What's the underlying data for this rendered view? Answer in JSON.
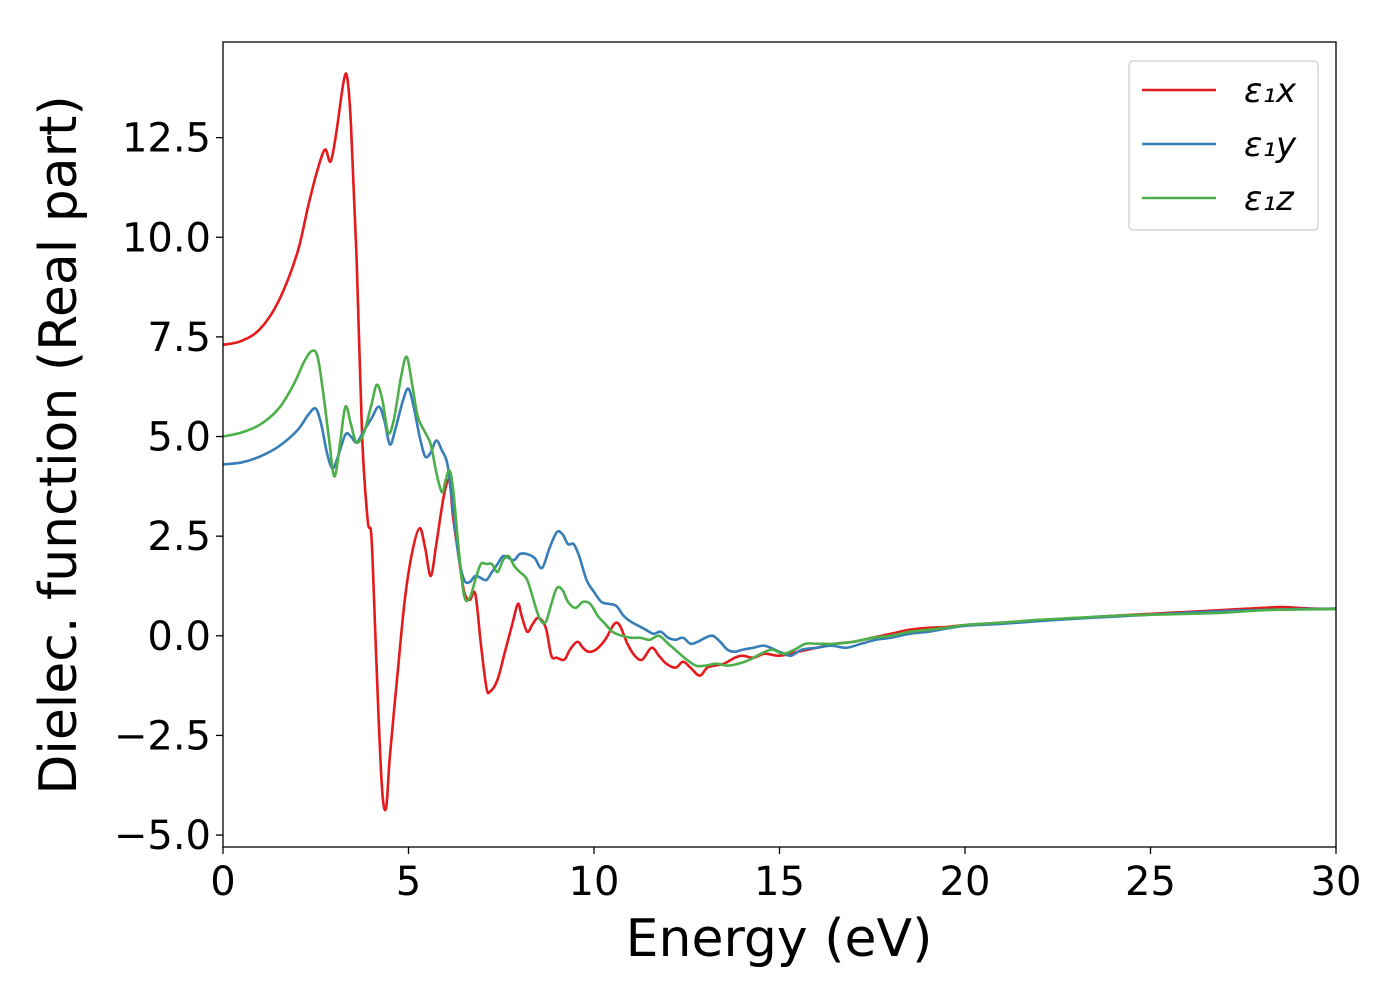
{
  "chart_data": {
    "type": "line",
    "xlabel": "Energy (eV)",
    "ylabel": "Dielec. function (Real part)",
    "xlim": [
      0,
      30
    ],
    "ylim": [
      -5.3,
      14.9
    ],
    "x_ticks": [
      0,
      5,
      10,
      15,
      20,
      25,
      30
    ],
    "x_tick_labels": [
      "0",
      "5",
      "10",
      "15",
      "20",
      "25",
      "30"
    ],
    "y_ticks": [
      -5.0,
      -2.5,
      0.0,
      2.5,
      5.0,
      7.5,
      10.0,
      12.5
    ],
    "y_tick_labels": [
      "−5.0",
      "−2.5",
      "0.0",
      "2.5",
      "5.0",
      "7.5",
      "10.0",
      "12.5"
    ],
    "grid": false,
    "legend_position": "top-right",
    "series": [
      {
        "name": "ε₁x",
        "color": "#e41a1c",
        "points": [
          [
            0,
            7.3
          ],
          [
            0.5,
            7.4
          ],
          [
            1.0,
            7.7
          ],
          [
            1.5,
            8.4
          ],
          [
            2.0,
            9.6
          ],
          [
            2.3,
            10.8
          ],
          [
            2.55,
            11.7
          ],
          [
            2.75,
            12.2
          ],
          [
            2.9,
            11.9
          ],
          [
            3.05,
            12.6
          ],
          [
            3.25,
            13.9
          ],
          [
            3.35,
            14.0
          ],
          [
            3.45,
            12.8
          ],
          [
            3.6,
            9.5
          ],
          [
            3.75,
            5.0
          ],
          [
            3.9,
            2.9
          ],
          [
            4.0,
            2.5
          ],
          [
            4.1,
            0.2
          ],
          [
            4.2,
            -2.2
          ],
          [
            4.3,
            -4.0
          ],
          [
            4.4,
            -4.3
          ],
          [
            4.5,
            -3.0
          ],
          [
            4.7,
            -1.0
          ],
          [
            4.9,
            0.9
          ],
          [
            5.1,
            2.1
          ],
          [
            5.3,
            2.7
          ],
          [
            5.45,
            2.2
          ],
          [
            5.6,
            1.5
          ],
          [
            5.75,
            2.3
          ],
          [
            5.95,
            3.5
          ],
          [
            6.1,
            3.9
          ],
          [
            6.2,
            3.0
          ],
          [
            6.35,
            2.0
          ],
          [
            6.5,
            1.1
          ],
          [
            6.65,
            0.9
          ],
          [
            6.8,
            1.05
          ],
          [
            6.95,
            -0.2
          ],
          [
            7.1,
            -1.3
          ],
          [
            7.2,
            -1.4
          ],
          [
            7.4,
            -1.1
          ],
          [
            7.6,
            -0.4
          ],
          [
            7.8,
            0.3
          ],
          [
            7.95,
            0.8
          ],
          [
            8.05,
            0.5
          ],
          [
            8.2,
            0.1
          ],
          [
            8.35,
            0.3
          ],
          [
            8.5,
            0.45
          ],
          [
            8.7,
            0.2
          ],
          [
            8.85,
            -0.5
          ],
          [
            9.0,
            -0.55
          ],
          [
            9.2,
            -0.6
          ],
          [
            9.35,
            -0.35
          ],
          [
            9.55,
            -0.15
          ],
          [
            9.7,
            -0.3
          ],
          [
            9.85,
            -0.4
          ],
          [
            10.05,
            -0.35
          ],
          [
            10.3,
            -0.1
          ],
          [
            10.55,
            0.3
          ],
          [
            10.7,
            0.25
          ],
          [
            10.9,
            -0.2
          ],
          [
            11.1,
            -0.5
          ],
          [
            11.3,
            -0.6
          ],
          [
            11.55,
            -0.3
          ],
          [
            11.75,
            -0.5
          ],
          [
            11.95,
            -0.7
          ],
          [
            12.2,
            -0.8
          ],
          [
            12.4,
            -0.65
          ],
          [
            12.6,
            -0.8
          ],
          [
            12.85,
            -1.0
          ],
          [
            13.05,
            -0.8
          ],
          [
            13.25,
            -0.75
          ],
          [
            13.5,
            -0.7
          ],
          [
            13.8,
            -0.55
          ],
          [
            14.0,
            -0.5
          ],
          [
            14.3,
            -0.55
          ],
          [
            14.6,
            -0.45
          ],
          [
            15.0,
            -0.5
          ],
          [
            15.5,
            -0.4
          ],
          [
            16.0,
            -0.3
          ],
          [
            16.5,
            -0.2
          ],
          [
            17.0,
            -0.15
          ],
          [
            17.5,
            -0.05
          ],
          [
            18.0,
            0.05
          ],
          [
            18.5,
            0.15
          ],
          [
            19.0,
            0.2
          ],
          [
            19.5,
            0.22
          ],
          [
            20.0,
            0.27
          ],
          [
            21.0,
            0.33
          ],
          [
            22.0,
            0.38
          ],
          [
            23.0,
            0.44
          ],
          [
            24.0,
            0.5
          ],
          [
            25.0,
            0.55
          ],
          [
            26.0,
            0.6
          ],
          [
            27.0,
            0.65
          ],
          [
            28.0,
            0.7
          ],
          [
            28.5,
            0.72
          ],
          [
            29.0,
            0.7
          ],
          [
            29.5,
            0.68
          ],
          [
            30.0,
            0.68
          ]
        ]
      },
      {
        "name": "ε₁y",
        "color": "#377eb8",
        "points": [
          [
            0,
            4.3
          ],
          [
            0.5,
            4.35
          ],
          [
            1.0,
            4.5
          ],
          [
            1.5,
            4.75
          ],
          [
            2.0,
            5.15
          ],
          [
            2.3,
            5.55
          ],
          [
            2.5,
            5.7
          ],
          [
            2.65,
            5.3
          ],
          [
            2.8,
            4.6
          ],
          [
            2.95,
            4.2
          ],
          [
            3.1,
            4.5
          ],
          [
            3.3,
            5.05
          ],
          [
            3.45,
            5.0
          ],
          [
            3.6,
            4.85
          ],
          [
            3.8,
            5.15
          ],
          [
            4.0,
            5.45
          ],
          [
            4.2,
            5.75
          ],
          [
            4.35,
            5.4
          ],
          [
            4.5,
            4.8
          ],
          [
            4.65,
            5.2
          ],
          [
            4.85,
            5.9
          ],
          [
            5.0,
            6.2
          ],
          [
            5.15,
            5.7
          ],
          [
            5.3,
            5.0
          ],
          [
            5.45,
            4.5
          ],
          [
            5.6,
            4.6
          ],
          [
            5.75,
            4.9
          ],
          [
            5.9,
            4.65
          ],
          [
            6.05,
            4.3
          ],
          [
            6.2,
            3.2
          ],
          [
            6.35,
            2.0
          ],
          [
            6.5,
            1.4
          ],
          [
            6.65,
            1.35
          ],
          [
            6.8,
            1.5
          ],
          [
            6.95,
            1.45
          ],
          [
            7.1,
            1.4
          ],
          [
            7.25,
            1.6
          ],
          [
            7.4,
            1.8
          ],
          [
            7.55,
            2.0
          ],
          [
            7.7,
            1.95
          ],
          [
            7.85,
            1.9
          ],
          [
            8.0,
            2.05
          ],
          [
            8.2,
            2.05
          ],
          [
            8.4,
            1.95
          ],
          [
            8.6,
            1.7
          ],
          [
            8.8,
            2.2
          ],
          [
            9.0,
            2.6
          ],
          [
            9.15,
            2.55
          ],
          [
            9.3,
            2.3
          ],
          [
            9.45,
            2.3
          ],
          [
            9.6,
            2.0
          ],
          [
            9.8,
            1.4
          ],
          [
            10.0,
            1.1
          ],
          [
            10.2,
            0.85
          ],
          [
            10.4,
            0.8
          ],
          [
            10.6,
            0.75
          ],
          [
            10.8,
            0.5
          ],
          [
            11.0,
            0.35
          ],
          [
            11.2,
            0.25
          ],
          [
            11.4,
            0.15
          ],
          [
            11.6,
            0.05
          ],
          [
            11.8,
            0.1
          ],
          [
            12.0,
            -0.05
          ],
          [
            12.2,
            -0.1
          ],
          [
            12.4,
            -0.05
          ],
          [
            12.6,
            -0.2
          ],
          [
            12.8,
            -0.15
          ],
          [
            13.0,
            -0.05
          ],
          [
            13.2,
            0.0
          ],
          [
            13.4,
            -0.15
          ],
          [
            13.6,
            -0.35
          ],
          [
            13.8,
            -0.4
          ],
          [
            14.0,
            -0.35
          ],
          [
            14.3,
            -0.3
          ],
          [
            14.6,
            -0.25
          ],
          [
            15.0,
            -0.4
          ],
          [
            15.3,
            -0.5
          ],
          [
            15.6,
            -0.35
          ],
          [
            16.0,
            -0.3
          ],
          [
            16.4,
            -0.25
          ],
          [
            16.8,
            -0.3
          ],
          [
            17.2,
            -0.2
          ],
          [
            17.6,
            -0.1
          ],
          [
            18.0,
            -0.05
          ],
          [
            18.5,
            0.05
          ],
          [
            19.0,
            0.1
          ],
          [
            19.5,
            0.18
          ],
          [
            20.0,
            0.25
          ],
          [
            21.0,
            0.3
          ],
          [
            22.0,
            0.37
          ],
          [
            23.0,
            0.43
          ],
          [
            24.0,
            0.48
          ],
          [
            25.0,
            0.53
          ],
          [
            26.0,
            0.58
          ],
          [
            27.0,
            0.62
          ],
          [
            28.0,
            0.65
          ],
          [
            29.0,
            0.67
          ],
          [
            30.0,
            0.68
          ]
        ]
      },
      {
        "name": "ε₁z",
        "color": "#4daf4a",
        "points": [
          [
            0,
            5.0
          ],
          [
            0.5,
            5.1
          ],
          [
            1.0,
            5.3
          ],
          [
            1.5,
            5.7
          ],
          [
            1.9,
            6.3
          ],
          [
            2.2,
            6.9
          ],
          [
            2.4,
            7.15
          ],
          [
            2.55,
            7.0
          ],
          [
            2.7,
            6.1
          ],
          [
            2.85,
            5.0
          ],
          [
            3.0,
            4.0
          ],
          [
            3.15,
            4.8
          ],
          [
            3.3,
            5.75
          ],
          [
            3.45,
            5.3
          ],
          [
            3.6,
            4.85
          ],
          [
            3.8,
            5.1
          ],
          [
            4.0,
            5.8
          ],
          [
            4.15,
            6.3
          ],
          [
            4.3,
            5.9
          ],
          [
            4.45,
            5.1
          ],
          [
            4.6,
            5.4
          ],
          [
            4.8,
            6.5
          ],
          [
            4.95,
            7.0
          ],
          [
            5.1,
            6.3
          ],
          [
            5.25,
            5.5
          ],
          [
            5.45,
            5.1
          ],
          [
            5.6,
            4.8
          ],
          [
            5.75,
            4.1
          ],
          [
            5.9,
            3.6
          ],
          [
            6.0,
            3.9
          ],
          [
            6.1,
            4.15
          ],
          [
            6.2,
            3.7
          ],
          [
            6.35,
            2.2
          ],
          [
            6.5,
            1.0
          ],
          [
            6.65,
            0.95
          ],
          [
            6.8,
            1.4
          ],
          [
            6.95,
            1.8
          ],
          [
            7.1,
            1.8
          ],
          [
            7.25,
            1.8
          ],
          [
            7.4,
            1.6
          ],
          [
            7.55,
            1.9
          ],
          [
            7.7,
            2.0
          ],
          [
            7.85,
            1.75
          ],
          [
            8.0,
            1.6
          ],
          [
            8.2,
            1.4
          ],
          [
            8.4,
            0.8
          ],
          [
            8.55,
            0.4
          ],
          [
            8.7,
            0.35
          ],
          [
            8.85,
            0.8
          ],
          [
            9.0,
            1.2
          ],
          [
            9.15,
            1.15
          ],
          [
            9.3,
            0.85
          ],
          [
            9.5,
            0.7
          ],
          [
            9.7,
            0.85
          ],
          [
            9.9,
            0.8
          ],
          [
            10.1,
            0.5
          ],
          [
            10.3,
            0.3
          ],
          [
            10.5,
            0.1
          ],
          [
            10.75,
            0.0
          ],
          [
            11.0,
            -0.05
          ],
          [
            11.25,
            -0.05
          ],
          [
            11.5,
            -0.1
          ],
          [
            11.75,
            0.0
          ],
          [
            12.0,
            -0.2
          ],
          [
            12.25,
            -0.4
          ],
          [
            12.5,
            -0.6
          ],
          [
            12.75,
            -0.75
          ],
          [
            13.0,
            -0.75
          ],
          [
            13.3,
            -0.7
          ],
          [
            13.6,
            -0.75
          ],
          [
            13.9,
            -0.7
          ],
          [
            14.2,
            -0.6
          ],
          [
            14.5,
            -0.45
          ],
          [
            14.8,
            -0.35
          ],
          [
            15.1,
            -0.45
          ],
          [
            15.4,
            -0.35
          ],
          [
            15.7,
            -0.2
          ],
          [
            16.0,
            -0.2
          ],
          [
            16.5,
            -0.2
          ],
          [
            17.0,
            -0.15
          ],
          [
            17.5,
            -0.05
          ],
          [
            18.0,
            0.0
          ],
          [
            18.5,
            0.1
          ],
          [
            19.0,
            0.15
          ],
          [
            19.5,
            0.2
          ],
          [
            20.0,
            0.27
          ],
          [
            21.0,
            0.33
          ],
          [
            22.0,
            0.4
          ],
          [
            23.0,
            0.45
          ],
          [
            24.0,
            0.5
          ],
          [
            25.0,
            0.53
          ],
          [
            26.0,
            0.55
          ],
          [
            27.0,
            0.58
          ],
          [
            28.0,
            0.64
          ],
          [
            29.0,
            0.66
          ],
          [
            30.0,
            0.67
          ]
        ]
      }
    ]
  }
}
